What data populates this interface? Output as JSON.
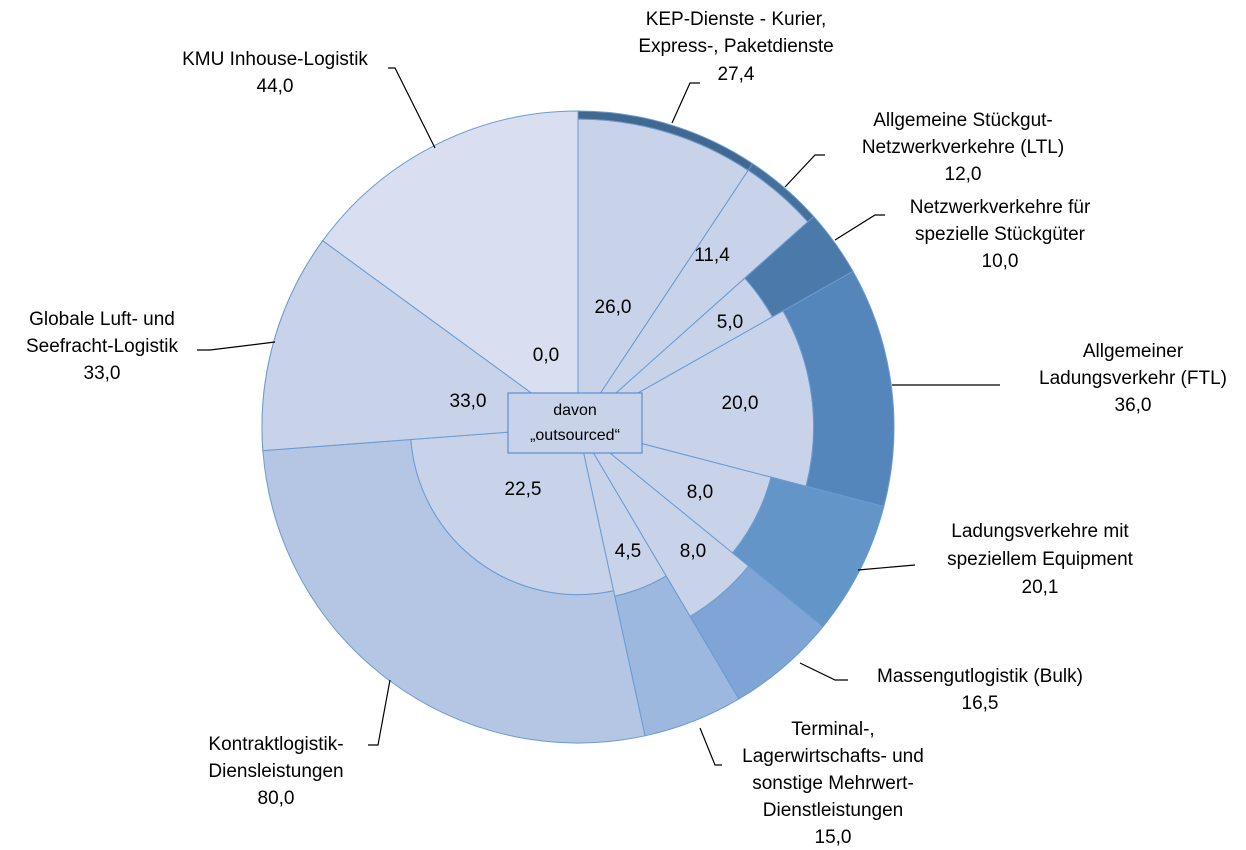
{
  "chart_data": {
    "type": "pie",
    "categories": [
      "KEP-Dienste - Kurier,\nExpress-, Paketdienste",
      "Allgemeine Stückgut-\nNetzwerkverkehre (LTL)",
      "Netzwerkverkehre für\nspezielle Stückgüter",
      "Allgemeiner\nLadungsverkehr (FTL)",
      "Ladungsverkehre mit\nspeziellem Equipment",
      "Massengutlogistik (Bulk)",
      "Terminal-,\nLagerwirtschafts- und\nsonstige Mehrwert-\nDienstleistungen",
      "Kontraktlogistik-\nDiensleistungen",
      "Globale Luft- und\nSeefracht-Logistik",
      "KMU Inhouse-Logistik"
    ],
    "values": [
      27.4,
      12.0,
      10.0,
      36.0,
      20.1,
      16.5,
      15.0,
      80.0,
      33.0,
      44.0
    ],
    "value_labels": [
      "27,4",
      "12,0",
      "10,0",
      "36,0",
      "20,1",
      "16,5",
      "15,0",
      "80,0",
      "33,0",
      "44,0"
    ],
    "outsourced_values": [
      26.0,
      11.4,
      5.0,
      20.0,
      8.0,
      8.0,
      4.5,
      22.5,
      33.0,
      0.0
    ],
    "outsourced_value_labels": [
      "26,0",
      "11,4",
      "5,0",
      "20,0",
      "8,0",
      "8,0",
      "4,5",
      "22,5",
      "33,0",
      "0,0"
    ],
    "center_label": "davon\n„outsourced“",
    "colors": [
      "#41698f",
      "#44709a",
      "#4a79aa",
      "#5586bb",
      "#6495c9",
      "#7ea5d6",
      "#9db8de",
      "#b4c6e4",
      "#c8d3ea",
      "#d9dff0"
    ],
    "outsourced_color": "#c8d3ea"
  }
}
